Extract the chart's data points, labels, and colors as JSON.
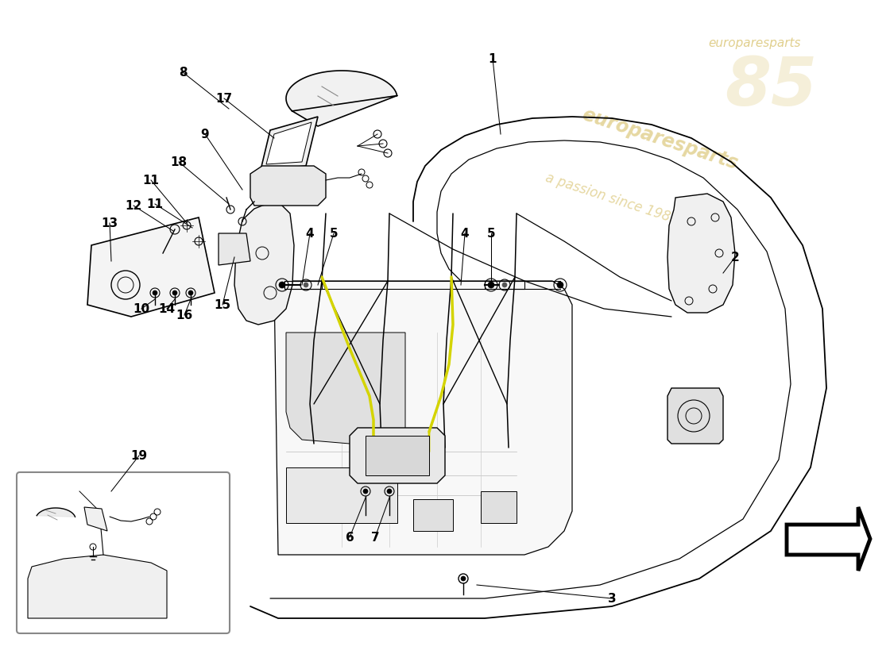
{
  "bg_color": "#ffffff",
  "line_color": "#000000",
  "highlight_color": "#d4d400",
  "lw_main": 1.2,
  "lw_inner": 0.8,
  "lw_thin": 0.6,
  "watermark1": "europaresparts",
  "watermark2": "a passion since 1985",
  "wm_color": "#c8a830",
  "wm_alpha": 0.45,
  "num85_color": "#c8a830",
  "num85_alpha": 0.18
}
